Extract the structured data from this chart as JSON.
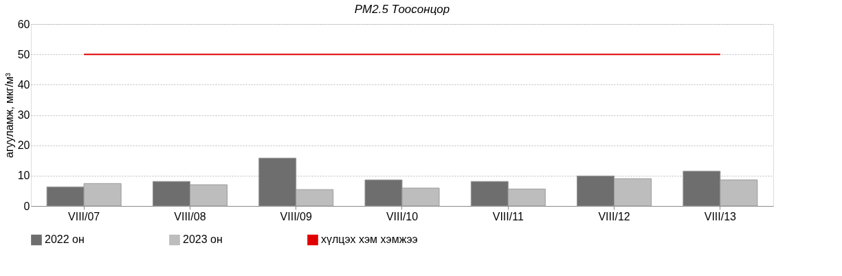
{
  "chart_data": {
    "type": "bar",
    "title": "PM2.5 Тоосонцор",
    "ylabel": "агууламж, мкг/м³",
    "categories": [
      "VIII/07",
      "VIII/08",
      "VIII/09",
      "VIII/10",
      "VIII/11",
      "VIII/12",
      "VIII/13"
    ],
    "series": [
      {
        "name": "2022 он",
        "color": "#6e6e6e",
        "values": [
          6.3,
          8.1,
          15.8,
          8.6,
          8.1,
          9.9,
          11.5
        ]
      },
      {
        "name": "2023 он",
        "color": "#bdbdbd",
        "values": [
          7.4,
          7.0,
          5.4,
          5.9,
          5.6,
          9.0,
          8.6
        ]
      }
    ],
    "ref_lines": [
      {
        "axis": "y",
        "value": 50,
        "label": "хүлцэх хэм хэмжээ",
        "color": "#e00000",
        "line_style": "solid"
      }
    ],
    "ylim": [
      0,
      60
    ],
    "yticks": [
      0,
      10,
      20,
      30,
      40,
      50,
      60
    ],
    "grid": "y",
    "legend": "bottom"
  }
}
